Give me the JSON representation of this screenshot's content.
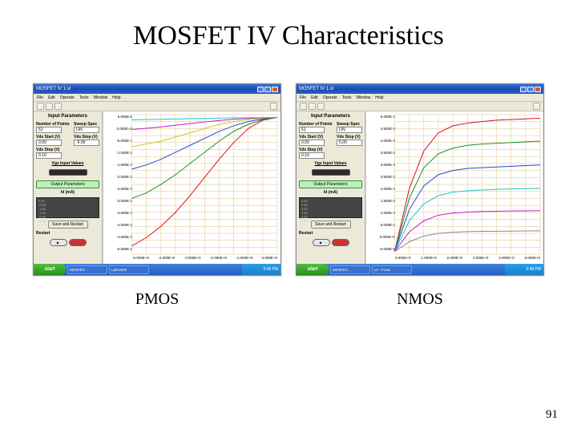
{
  "title": "MOSFET IV Characteristics",
  "page_number": "91",
  "windows": [
    {
      "id": "pmos",
      "caption": "PMOS",
      "window_title": "MOSFET IV 1.vi",
      "menus": [
        "File",
        "Edit",
        "Operate",
        "Tools",
        "Window",
        "Help"
      ],
      "input_heading": "Input Parameters",
      "fields": {
        "num_points_label": "Number of Points",
        "num_points": "51",
        "sweep_spec_label": "Sweep Spec",
        "sweep_spec": "LIN",
        "vds_start_label": "Vds Start (V)",
        "vds_start": "0.00",
        "vds_stop_label": "Vds Stop (V)",
        "vds_stop": "-5.00",
        "vds_step_label": "Vds Step (V)",
        "vds_step": "0.10"
      },
      "vgs_heading": "Vgs Input Values",
      "vgs_values": [
        "0.00",
        "-0.50",
        "-1.00",
        "-1.50",
        "-2.00",
        "-2.50"
      ],
      "output_button": "Output Parameters",
      "output_heading": "Id (mA)",
      "help_btn": "Save and Restart",
      "restart_label": "Restart",
      "chart": {
        "type": "line",
        "background_color": "#ffffff",
        "grid_color": "#ddc08a",
        "x_grid_count": 10,
        "y_grid_count": 20,
        "xlim": [
          -5,
          0
        ],
        "ylim": [
          -0.005,
          5e-05
        ],
        "y_ticks": [
          "5.000E-5",
          "0.000E+0",
          "-5.000E-4",
          "-1.000E-3",
          "-1.500E-3",
          "-2.000E-3",
          "-2.500E-3",
          "-3.000E-3",
          "-3.500E-3",
          "-4.000E-3",
          "-4.500E-3",
          "-5.000E-3"
        ],
        "x_ticks": [
          "-5.000E+0",
          "-4.000E+0",
          "-3.000E+0",
          "-2.000E+0",
          "-1.000E+0",
          "0.000E+0"
        ],
        "x_pts": [
          0,
          -0.5,
          -1,
          -1.5,
          -2,
          -2.5,
          -3,
          -3.5,
          -4,
          -4.5,
          -5
        ],
        "series": [
          {
            "color": "#d11",
            "values": [
              0,
              -0.02,
              -0.08,
              -0.18,
              -0.3,
              -0.43,
              -0.56,
              -0.68,
              -0.78,
              -0.86,
              -0.92
            ]
          },
          {
            "color": "#1a8f1a",
            "values": [
              0,
              -0.015,
              -0.05,
              -0.1,
              -0.17,
              -0.25,
              -0.33,
              -0.41,
              -0.48,
              -0.54,
              -0.58
            ]
          },
          {
            "color": "#1a4fc8",
            "values": [
              0,
              -0.01,
              -0.03,
              -0.06,
              -0.1,
              -0.15,
              -0.2,
              -0.25,
              -0.3,
              -0.34,
              -0.37
            ]
          },
          {
            "color": "#c8c81a",
            "values": [
              0,
              -0.005,
              -0.015,
              -0.03,
              -0.05,
              -0.08,
              -0.11,
              -0.14,
              -0.17,
              -0.19,
              -0.21
            ]
          },
          {
            "color": "#c81ac8",
            "values": [
              0,
              -0.002,
              -0.007,
              -0.013,
              -0.022,
              -0.032,
              -0.044,
              -0.056,
              -0.068,
              -0.078,
              -0.086
            ]
          },
          {
            "color": "#1ac8c8",
            "values": [
              0,
              -0.001,
              -0.002,
              -0.003,
              -0.005,
              -0.007,
              -0.009,
              -0.011,
              -0.013,
              -0.015,
              -0.017
            ]
          }
        ],
        "line_width": 1
      },
      "taskbar_items": [
        "MOSFET...",
        "LabVIEW"
      ],
      "clock": "3:46 PM"
    },
    {
      "id": "nmos",
      "caption": "NMOS",
      "window_title": "MOSFET IV 1.vi",
      "menus": [
        "File",
        "Edit",
        "Operate",
        "Tools",
        "Window",
        "Help"
      ],
      "input_heading": "Input Parameters",
      "fields": {
        "num_points_label": "Number of Points",
        "num_points": "51",
        "sweep_spec_label": "Sweep Spec",
        "sweep_spec": "LIN",
        "vds_start_label": "Vds Start (V)",
        "vds_start": "0.00",
        "vds_stop_label": "Vds Stop (V)",
        "vds_stop": "5.00",
        "vds_step_label": "Vds Step (V)",
        "vds_step": "0.10"
      },
      "vgs_heading": "Vgs Input Values",
      "vgs_values": [
        "0.00",
        "0.50",
        "1.00",
        "1.50",
        "2.00",
        "2.50"
      ],
      "output_button": "Output Parameters",
      "output_heading": "Id (mA)",
      "help_btn": "Save and Restart",
      "restart_label": "Restart",
      "chart": {
        "type": "line",
        "background_color": "#ffffff",
        "grid_color": "#ddc08a",
        "x_grid_count": 10,
        "y_grid_count": 20,
        "xlim": [
          0,
          5
        ],
        "ylim": [
          -5e-05,
          0.005
        ],
        "y_ticks": [
          "5.000E-3",
          "4.500E-3",
          "4.000E-3",
          "3.500E-3",
          "3.000E-3",
          "2.500E-3",
          "2.000E-3",
          "1.500E-3",
          "1.000E-3",
          "5.000E-4",
          "0.000E+0",
          "-5.000E-5"
        ],
        "x_ticks": [
          "0.000E+0",
          "1.000E+0",
          "2.000E+0",
          "3.000E+0",
          "4.000E+0",
          "5.000E+0"
        ],
        "x_pts": [
          0,
          0.5,
          1,
          1.5,
          2,
          2.5,
          3,
          3.5,
          4,
          4.5,
          5
        ],
        "series": [
          {
            "color": "#d11",
            "values": [
              0,
              0.45,
              0.72,
              0.85,
              0.9,
              0.92,
              0.93,
              0.94,
              0.945,
              0.95,
              0.955
            ]
          },
          {
            "color": "#1a8f1a",
            "values": [
              0,
              0.38,
              0.6,
              0.7,
              0.74,
              0.76,
              0.77,
              0.775,
              0.78,
              0.785,
              0.79
            ]
          },
          {
            "color": "#1a4fc8",
            "values": [
              0,
              0.3,
              0.47,
              0.55,
              0.58,
              0.595,
              0.6,
              0.605,
              0.61,
              0.615,
              0.62
            ]
          },
          {
            "color": "#1ac8c8",
            "values": [
              0,
              0.22,
              0.34,
              0.4,
              0.425,
              0.435,
              0.44,
              0.445,
              0.448,
              0.45,
              0.452
            ]
          },
          {
            "color": "#c81ac8",
            "values": [
              0,
              0.14,
              0.22,
              0.26,
              0.275,
              0.282,
              0.286,
              0.288,
              0.29,
              0.291,
              0.292
            ]
          },
          {
            "color": "#888",
            "values": [
              0,
              0.07,
              0.11,
              0.13,
              0.138,
              0.142,
              0.144,
              0.145,
              0.146,
              0.147,
              0.148
            ]
          }
        ],
        "line_width": 1
      },
      "taskbar_items": [
        "MOSFET...",
        "LV - Front"
      ],
      "clock": "3:48 PM"
    }
  ]
}
